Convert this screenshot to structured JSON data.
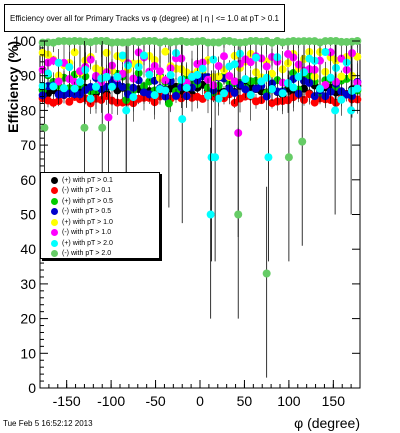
{
  "title": "Efficiency over all for Primary Tracks vs φ (degree) at |  η | <= 1.0 at pT > 0.1",
  "footer": "Tue Feb  5 16:52:12 2013",
  "chart_data": {
    "type": "scatter",
    "xlabel": "φ (degree)",
    "ylabel": "Efficiency (%)",
    "xlim": [
      -180,
      180
    ],
    "ylim": [
      0,
      100
    ],
    "xticks": [
      -150,
      -100,
      -50,
      0,
      50,
      100,
      150
    ],
    "yticks": [
      0,
      10,
      20,
      30,
      40,
      50,
      60,
      70,
      80,
      90,
      100
    ],
    "grid": false,
    "legend_position": "middle-left",
    "series": [
      {
        "name": "(+) with pT > 0.1",
        "color": "#000000",
        "base": 86,
        "spread": 1.5,
        "outliers": []
      },
      {
        "name": "(-) with pT > 0.1",
        "color": "#ff0000",
        "base": 83.5,
        "spread": 1.5,
        "outliers": []
      },
      {
        "name": "(+) with pT > 0.5",
        "color": "#00cc00",
        "base": 88,
        "spread": 3,
        "outliers": [
          {
            "x": -83,
            "y": 83
          },
          {
            "x": -35,
            "y": 82
          }
        ]
      },
      {
        "name": "(-) with pT > 0.5",
        "color": "#0000cc",
        "base": 87,
        "spread": 3,
        "outliers": []
      },
      {
        "name": "(+) with pT > 1.0",
        "color": "#ffff00",
        "base": 93,
        "spread": 4,
        "outliers": []
      },
      {
        "name": "(-) with pT > 1.0",
        "color": "#ff00ff",
        "base": 92,
        "spread": 5,
        "outliers": [
          {
            "x": 43,
            "y": 73.5
          },
          {
            "x": -103,
            "y": 78
          }
        ]
      },
      {
        "name": "(+) with pT > 2.0",
        "color": "#00ffff",
        "base": 90,
        "spread": 7,
        "outliers": [
          {
            "x": -20,
            "y": 77.5
          },
          {
            "x": 13,
            "y": 66.5
          },
          {
            "x": 17,
            "y": 66.5
          },
          {
            "x": 77,
            "y": 66.5
          },
          {
            "x": 12,
            "y": 50
          },
          {
            "x": -83,
            "y": 80
          },
          {
            "x": 170,
            "y": 80
          },
          {
            "x": 152,
            "y": 80
          }
        ]
      },
      {
        "name": "(-) with pT > 2.0",
        "color": "#66cc66",
        "base": 99.8,
        "spread": 0.3,
        "outliers": [
          {
            "x": -175,
            "y": 75
          },
          {
            "x": -130,
            "y": 75
          },
          {
            "x": -110,
            "y": 75
          },
          {
            "x": 100,
            "y": 66.5
          },
          {
            "x": 115,
            "y": 71
          },
          {
            "x": 43,
            "y": 50
          },
          {
            "x": 75,
            "y": 33
          }
        ]
      }
    ]
  }
}
